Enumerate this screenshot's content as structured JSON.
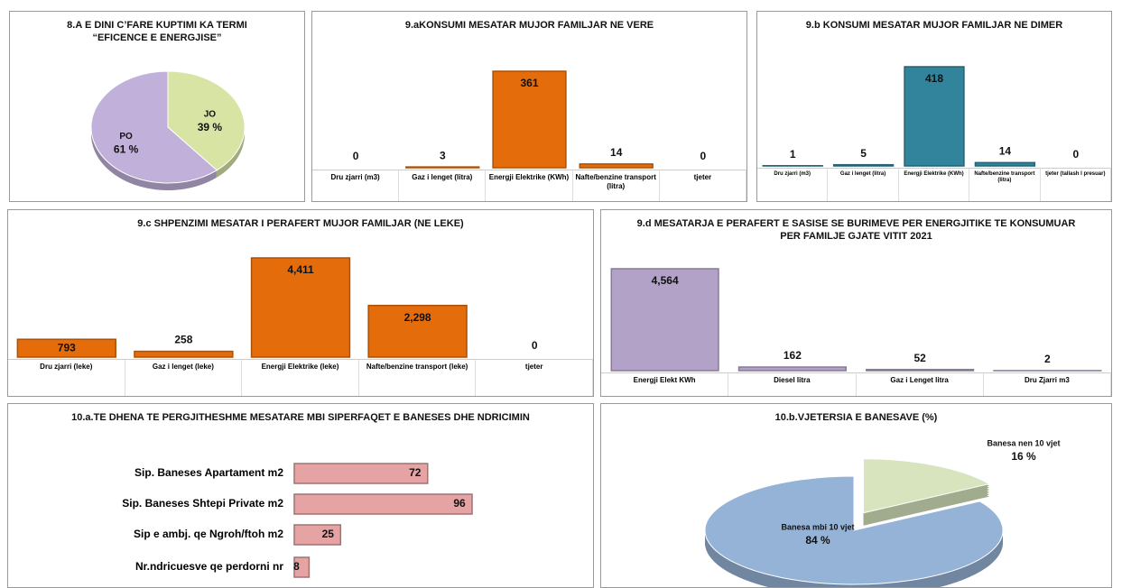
{
  "chart_data": [
    {
      "type": "pie",
      "title": "8.A E DINI C’FARE KUPTIMI KA TERMI “EFICENCE E ENERGJISE”",
      "categories": [
        "JO",
        "PO"
      ],
      "values": [
        39,
        61
      ],
      "value_labels": [
        "39 %",
        "61 %"
      ],
      "colors": [
        "#d7e4a4",
        "#c1b1da"
      ]
    },
    {
      "type": "bar",
      "title": "9.aKONSUMI MESATAR MUJOR FAMILJAR NE VERE",
      "categories": [
        "Dru zjarri (m3)",
        "Gaz i lenget (litra)",
        "Energji Elektrike (KWh)",
        "Nafte/benzine transport (litra)",
        "tjeter"
      ],
      "values": [
        0,
        3,
        361,
        14,
        0
      ],
      "color": "#e46c0a"
    },
    {
      "type": "bar",
      "title": "9.b KONSUMI MESATAR MUJOR FAMILJAR NE DIMER",
      "categories": [
        "Dru zjarri (m3)",
        "Gaz i lenget (litra)",
        "Energji Elektrike (KWh)",
        "Nafte/benzine transport (litra)",
        "tjeter (tallash I presuar)"
      ],
      "values": [
        1,
        5,
        418,
        14,
        0
      ],
      "color": "#31849b"
    },
    {
      "type": "bar",
      "title": "9.c SHPENZIMI MESATAR I PERAFERT MUJOR FAMILJAR (NE LEKE)",
      "categories": [
        "Dru zjarri (leke)",
        "Gaz i lenget (leke)",
        "Energji Elektrike (leke)",
        "Nafte/benzine transport (leke)",
        "tjeter"
      ],
      "values": [
        793,
        258,
        4411,
        2298,
        0
      ],
      "value_labels": [
        "793",
        "258",
        "4,411",
        "2,298",
        "0"
      ],
      "color": "#e46c0a"
    },
    {
      "type": "bar",
      "title": "9.d MESATARJA E PERAFERT E SASISE SE BURIMEVE PER ENERGJITIKE TE KONSUMUAR PER FAMILJE GJATE VITIT 2021",
      "categories": [
        "Energji Elekt KWh",
        "Diesel litra",
        "Gaz i Lenget litra",
        "Dru Zjarri m3"
      ],
      "values": [
        4564,
        162,
        52,
        2
      ],
      "value_labels": [
        "4,564",
        "162",
        "52",
        "2"
      ],
      "color": "#b3a2c7"
    },
    {
      "type": "hbar",
      "title": "10.a.TE DHENA TE PERGJITHESHME MESATARE MBI SIPERFAQET E BANESES DHE NDRICIMIN",
      "categories": [
        "Sip. Baneses Apartament m2",
        "Sip. Baneses Shtepi Private m2",
        "Sip e ambj. qe Ngroh/ftoh m2",
        "Nr.ndricuesve qe perdorni nr"
      ],
      "values": [
        72,
        96,
        25,
        8
      ],
      "color": "#e6a3a3"
    },
    {
      "type": "pie",
      "title": "10.b.VJETERSIA E BANESAVE (%)",
      "categories": [
        "Banesa nen 10 vjet",
        "Banesa mbi 10 vjet"
      ],
      "values": [
        16,
        84
      ],
      "value_labels": [
        "16 %",
        "84 %"
      ],
      "colors": [
        "#d7e4bd",
        "#95b3d7"
      ]
    }
  ]
}
